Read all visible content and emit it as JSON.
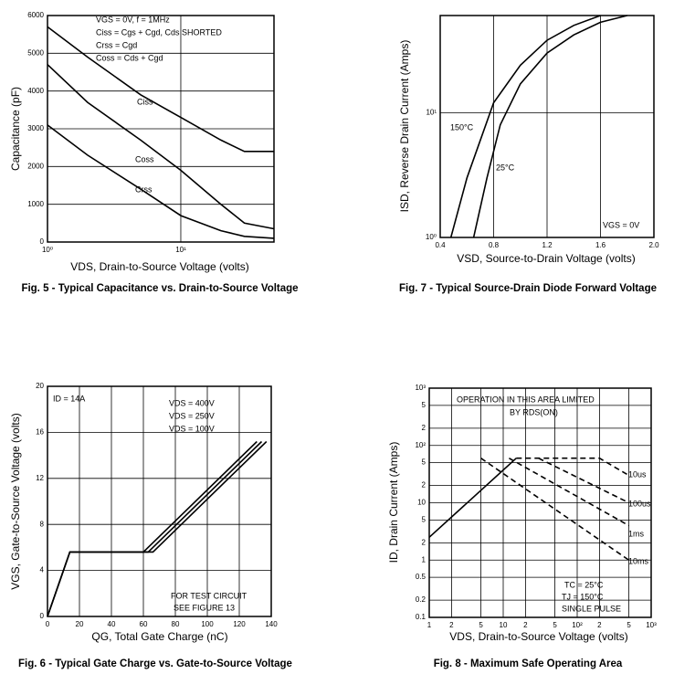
{
  "chart_data": [
    {
      "type": "line",
      "caption": "Fig. 5 - Typical Capacitance vs. Drain-to-Source Voltage",
      "xlabel": "VDS, Drain-to-Source Voltage (volts)",
      "ylabel": "Capacitance (pF)",
      "xscale": "log",
      "xlim": [
        1,
        50
      ],
      "xticks": [
        {
          "value": 1,
          "label": "10⁰"
        },
        {
          "value": 10,
          "label": "10¹"
        }
      ],
      "ylim": [
        0,
        6000
      ],
      "yticks": [
        0,
        1000,
        2000,
        3000,
        4000,
        5000,
        6000
      ],
      "grid": true,
      "annotations": [
        "VGS = 0V,  f = 1MHz",
        "Ciss = Cgs + Cgd,  Cds SHORTED",
        "Crss = Cgd",
        "Coss = Cds + Cgd"
      ],
      "series": [
        {
          "name": "Ciss",
          "color": "#000000",
          "x": [
            1,
            2,
            5,
            10,
            20,
            30,
            50
          ],
          "values": [
            5700,
            4900,
            3900,
            3300,
            2700,
            2400,
            2400
          ]
        },
        {
          "name": "Coss",
          "color": "#000000",
          "x": [
            1,
            2,
            5,
            10,
            20,
            30,
            50
          ],
          "values": [
            4700,
            3700,
            2700,
            1900,
            1000,
            500,
            350
          ]
        },
        {
          "name": "Crss",
          "color": "#000000",
          "x": [
            1,
            2,
            5,
            10,
            20,
            30,
            50
          ],
          "values": [
            3100,
            2300,
            1400,
            700,
            300,
            150,
            100
          ]
        }
      ]
    },
    {
      "type": "line",
      "caption": "Fig. 7 - Typical Source-Drain Diode Forward Voltage",
      "xlabel": "VSD, Source-to-Drain Voltage (volts)",
      "ylabel": "ISD, Reverse Drain Current (Amps)",
      "xlim": [
        0.4,
        2
      ],
      "xticks": [
        0.4,
        0.8,
        1.2,
        1.6,
        {
          "value": 2,
          "label": "2.0"
        }
      ],
      "yscale": "log",
      "ylim": [
        1,
        60
      ],
      "yticks": [
        {
          "value": 1,
          "label": "10⁰"
        },
        {
          "value": 10,
          "label": "10¹"
        }
      ],
      "grid": true,
      "annotations": [
        "VGS = 0V"
      ],
      "series": [
        {
          "name": "150°C",
          "color": "#000000",
          "x": [
            0.48,
            0.6,
            0.8,
            1.0,
            1.2,
            1.4,
            1.6
          ],
          "values": [
            1,
            3,
            12,
            24,
            38,
            50,
            60
          ]
        },
        {
          "name": "25°C",
          "color": "#000000",
          "x": [
            0.65,
            0.75,
            0.85,
            1.0,
            1.2,
            1.4,
            1.6,
            1.8
          ],
          "values": [
            1,
            3,
            8,
            17,
            30,
            42,
            53,
            60
          ]
        }
      ]
    },
    {
      "type": "line",
      "caption": "Fig. 6 - Typical Gate Charge vs. Gate-to-Source Voltage",
      "xlabel": "QG, Total Gate Charge (nC)",
      "ylabel": "VGS, Gate-to-Source Voltage (volts)",
      "xlim": [
        0,
        140
      ],
      "xticks": [
        0,
        20,
        40,
        60,
        80,
        100,
        120,
        140
      ],
      "ylim": [
        0,
        20
      ],
      "yticks": [
        0,
        4,
        8,
        12,
        16,
        20
      ],
      "grid": true,
      "annotations": [
        "ID = 14A",
        "FOR TEST CIRCUIT",
        "SEE FIGURE 13"
      ],
      "series": [
        {
          "name": "VDS = 400V",
          "color": "#000000",
          "x": [
            0,
            14,
            66,
            137
          ],
          "values": [
            0,
            5.6,
            5.6,
            15.2
          ]
        },
        {
          "name": "VDS = 250V",
          "color": "#000000",
          "x": [
            0,
            14,
            63,
            134
          ],
          "values": [
            0,
            5.6,
            5.6,
            15.2
          ]
        },
        {
          "name": "VDS = 100V",
          "color": "#000000",
          "x": [
            0,
            14,
            60,
            131
          ],
          "values": [
            0,
            5.6,
            5.6,
            15.2
          ]
        }
      ]
    },
    {
      "type": "line",
      "caption": "Fig. 8 - Maximum Safe Operating Area",
      "xlabel": "VDS, Drain-to-Source Voltage (volts)",
      "ylabel": "ID, Drain Current (Amps)",
      "xscale": "log",
      "xlim": [
        1,
        1000
      ],
      "xticks": [
        1,
        2,
        5,
        10,
        {
          "value": 20,
          "label": "2"
        },
        {
          "value": 50,
          "label": "5"
        },
        {
          "value": 100,
          "label": "10²"
        },
        {
          "value": 200,
          "label": "2"
        },
        {
          "value": 500,
          "label": "5"
        },
        {
          "value": 1000,
          "label": "10³"
        }
      ],
      "yscale": "log",
      "ylim": [
        0.1,
        1000
      ],
      "yticks": [
        0.1,
        0.2,
        0.5,
        1,
        2,
        5,
        10,
        {
          "value": 20,
          "label": "2"
        },
        {
          "value": 50,
          "label": "5"
        },
        {
          "value": 100,
          "label": "10²"
        },
        {
          "value": 200,
          "label": "2"
        },
        {
          "value": 500,
          "label": "5"
        },
        {
          "value": 1000,
          "label": "10³"
        }
      ],
      "grid": true,
      "annotations": [
        "OPERATION IN THIS AREA LIMITED",
        "BY RDS(ON)",
        "TC = 25°C",
        "TJ = 150°C",
        "SINGLE PULSE"
      ],
      "series": [
        {
          "color": "#000000",
          "x": [
            1,
            15
          ],
          "values": [
            2.5,
            60
          ]
        },
        {
          "name": "10us",
          "color": "#000000",
          "style": "dashed",
          "x": [
            15,
            200,
            500
          ],
          "values": [
            60,
            60,
            30
          ]
        },
        {
          "name": "100us",
          "color": "#000000",
          "style": "dashed",
          "x": [
            30,
            500
          ],
          "values": [
            60,
            10
          ]
        },
        {
          "name": "1ms",
          "color": "#000000",
          "style": "dashed",
          "x": [
            12,
            500
          ],
          "values": [
            60,
            4
          ]
        },
        {
          "name": "10ms",
          "color": "#000000",
          "style": "dashed",
          "x": [
            5,
            500
          ],
          "values": [
            60,
            1
          ]
        }
      ]
    }
  ]
}
